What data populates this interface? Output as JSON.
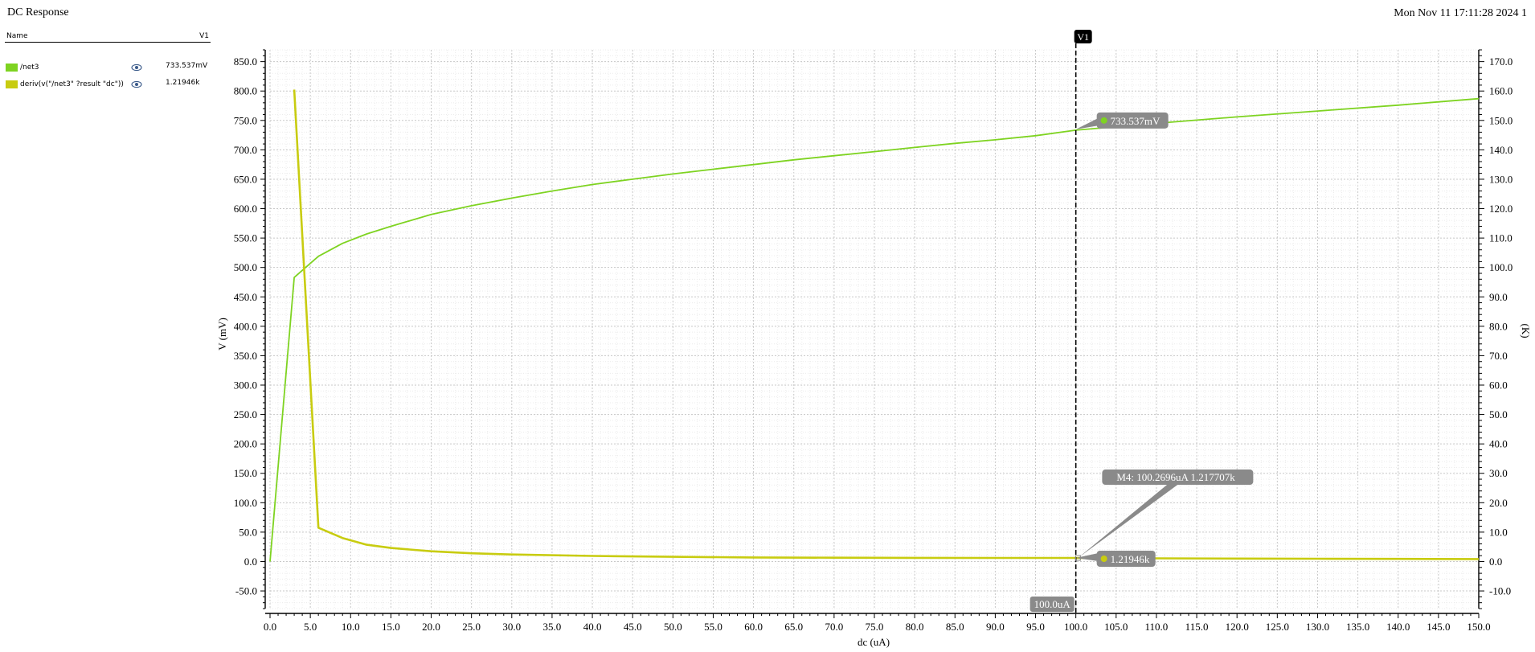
{
  "window": {
    "title": "DC Response",
    "timestamp": "Mon Nov 11 17:11:28 2024   1"
  },
  "legend": {
    "header_name": "Name",
    "header_value": "V1",
    "items": [
      {
        "name": "/net3",
        "value": "733.537mV",
        "color": "#7ed321",
        "icon": "eye-icon"
      },
      {
        "name": "deriv(v(\"/net3\" ?result \"dc\"))",
        "value": "1.21946k",
        "color": "#c8cc10",
        "icon": "eye-icon"
      }
    ]
  },
  "chart_data": {
    "type": "line",
    "xlabel": "dc (uA)",
    "ylabel": "V (mV)",
    "y2label": "(K)",
    "xlim": [
      0,
      150
    ],
    "ylim": [
      -80,
      870
    ],
    "y2lim": [
      -16,
      174
    ],
    "grid": true,
    "x_ticks": [
      "0.0",
      "5.0",
      "10.0",
      "15.0",
      "20.0",
      "25.0",
      "30.0",
      "35.0",
      "40.0",
      "45.0",
      "50.0",
      "55.0",
      "60.0",
      "65.0",
      "70.0",
      "75.0",
      "80.0",
      "85.0",
      "90.0",
      "95.0",
      "100.0",
      "105.0",
      "110.0",
      "115.0",
      "120.0",
      "125.0",
      "130.0",
      "135.0",
      "140.0",
      "145.0",
      "150.0"
    ],
    "y_ticks": [
      "-50.0",
      "0.0",
      "50.0",
      "100.0",
      "150.0",
      "200.0",
      "250.0",
      "300.0",
      "350.0",
      "400.0",
      "450.0",
      "500.0",
      "550.0",
      "600.0",
      "650.0",
      "700.0",
      "750.0",
      "800.0",
      "850.0"
    ],
    "y2_ticks": [
      "-10.0",
      "0.0",
      "10.0",
      "20.0",
      "30.0",
      "40.0",
      "50.0",
      "60.0",
      "70.0",
      "80.0",
      "90.0",
      "100.0",
      "110.0",
      "120.0",
      "130.0",
      "140.0",
      "150.0",
      "160.0",
      "170.0"
    ],
    "series": [
      {
        "name": "/net3",
        "axis": "left",
        "color": "#7ed321",
        "x": [
          0,
          3,
          6,
          9,
          12,
          15,
          20,
          25,
          30,
          35,
          40,
          45,
          50,
          55,
          60,
          65,
          70,
          75,
          80,
          85,
          90,
          95,
          100,
          110,
          120,
          130,
          140,
          150
        ],
        "y": [
          0,
          483,
          519,
          541,
          557,
          570,
          590,
          605,
          618,
          630,
          641,
          650,
          659,
          667,
          675,
          683,
          690,
          697,
          704,
          711,
          717,
          724,
          733.5,
          745,
          756,
          766,
          776,
          787
        ]
      },
      {
        "name": "deriv(v(\"/net3\" ?result \"dc\"))",
        "axis": "right",
        "color": "#c8cc10",
        "x": [
          3,
          6,
          9,
          12,
          15,
          20,
          25,
          30,
          40,
          50,
          60,
          70,
          80,
          90,
          100,
          110,
          120,
          130,
          140,
          150
        ],
        "y": [
          160.5,
          11.5,
          8.0,
          5.7,
          4.6,
          3.5,
          2.8,
          2.4,
          1.9,
          1.6,
          1.4,
          1.3,
          1.25,
          1.22,
          1.22,
          1.1,
          1.0,
          0.95,
          0.9,
          0.85
        ]
      }
    ],
    "vertical_marker": {
      "label": "V1",
      "x": 100,
      "x_label": "100.0uA"
    },
    "annotations": [
      {
        "text": "733.537mV",
        "x": 100,
        "y": 733.537,
        "axis": "left",
        "color": "#7ed321"
      },
      {
        "text": "1.21946k",
        "x": 100,
        "y": 1.21946,
        "axis": "right",
        "color": "#c8cc10"
      },
      {
        "text": "M4: 100.2696uA 1.217707k",
        "x": 100.2696,
        "y": 1.217707,
        "axis": "right"
      }
    ]
  }
}
